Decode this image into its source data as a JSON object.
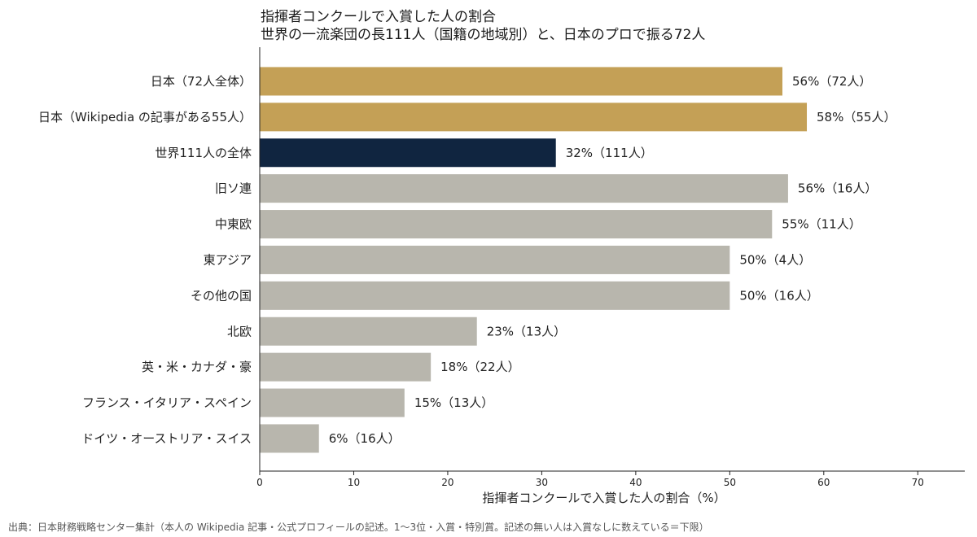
{
  "chart_data": {
    "type": "bar",
    "orientation": "horizontal",
    "title": "指揮者コンクールで入賞した人の割合",
    "subtitle": "世界の一流楽団の長111人（国籍の地域別）と、日本のプロで振る72人",
    "xlabel": "指揮者コンクールで入賞した人の割合（%）",
    "ylabel": "",
    "xlim": [
      0,
      75
    ],
    "xticks": [
      0,
      10,
      20,
      30,
      40,
      50,
      60,
      70
    ],
    "grid": false,
    "categories": [
      "日本（72人全体）",
      "日本（Wikipedia の記事がある55人）",
      "世界111人の全体",
      "旧ソ連",
      "中東欧",
      "東アジア",
      "その他の国",
      "北欧",
      "英・米・カナダ・豪",
      "フランス・イタリア・スペイン",
      "ドイツ・オーストリア・スイス"
    ],
    "values": [
      55.6,
      58.2,
      31.5,
      56.2,
      54.5,
      50,
      50,
      23.1,
      18.2,
      15.4,
      6.3
    ],
    "data_labels": [
      "56%（72人）",
      "58%（55人）",
      "32%（111人）",
      "56%（16人）",
      "55%（11人）",
      "50%（4人）",
      "50%（16人）",
      "23%（13人）",
      "18%（22人）",
      "15%（13人）",
      "6%（16人）"
    ],
    "colors": [
      "#c4a056",
      "#c4a056",
      "#102540",
      "#b8b6ad",
      "#b8b6ad",
      "#b8b6ad",
      "#b8b6ad",
      "#b8b6ad",
      "#b8b6ad",
      "#b8b6ad",
      "#b8b6ad"
    ]
  },
  "source_note": "出典：日本財務戦略センター集計（本人の Wikipedia 記事・公式プロフィールの記述。1〜3位・入賞・特別賞。記述の無い人は入賞なしに数えている＝下限）"
}
